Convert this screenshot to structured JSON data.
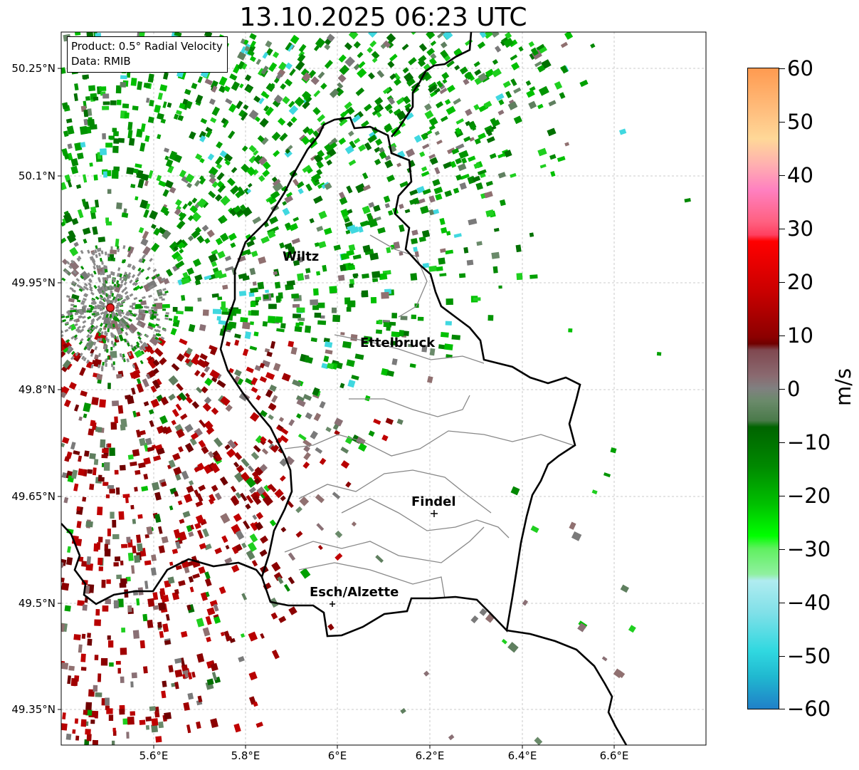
{
  "title": "13.10.2025 06:23 UTC",
  "info": {
    "product": "Product: 0.5° Radial Velocity",
    "source": "Data: RMIB"
  },
  "axes": {
    "lat_labels": [
      "50.25°N",
      "50.1°N",
      "49.95°N",
      "49.8°N",
      "49.65°N",
      "49.5°N",
      "49.35°N"
    ],
    "lon_labels": [
      "5.6°E",
      "5.8°E",
      "6°E",
      "6.2°E",
      "6.4°E",
      "6.6°E"
    ]
  },
  "places": {
    "wiltz": "Wiltz",
    "ettelbruck": "Ettelbruck",
    "findel": "Findel",
    "esch": "Esch/Alzette"
  },
  "colorbar": {
    "unit": "m/s",
    "tick_labels": [
      "60",
      "50",
      "40",
      "30",
      "20",
      "10",
      "0",
      "−10",
      "−20",
      "−30",
      "−40",
      "−50",
      "−60"
    ]
  },
  "colors": {
    "radar_site": "#e41a1c",
    "receding": "#8b0000",
    "approaching": "#00a000",
    "near_zero": "#7a7a7a"
  }
}
